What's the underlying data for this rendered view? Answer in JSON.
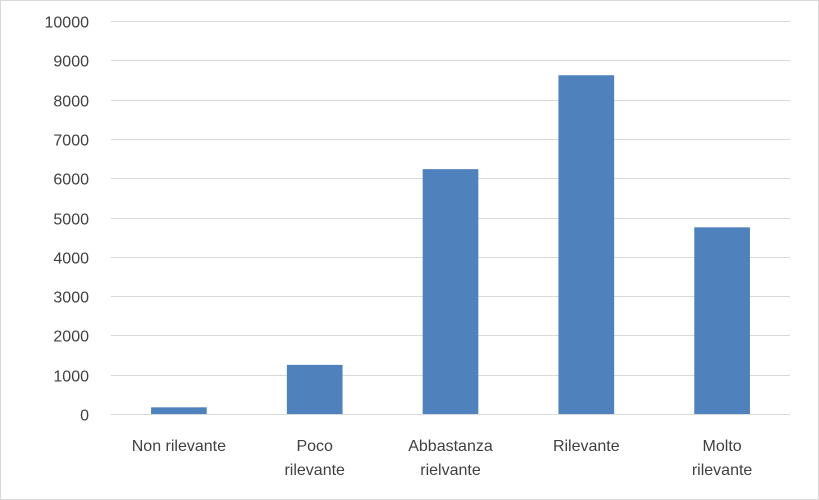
{
  "chart_data": {
    "type": "bar",
    "categories": [
      [
        "Non rilevante"
      ],
      [
        "Poco",
        "rilevante"
      ],
      [
        "Abbastanza",
        "rielvante"
      ],
      [
        "Rilevante"
      ],
      [
        "Molto",
        "rilevante"
      ]
    ],
    "values": [
      170,
      1250,
      6230,
      8620,
      4750
    ],
    "ylim": [
      0,
      10000
    ],
    "yticks": [
      0,
      1000,
      2000,
      3000,
      4000,
      5000,
      6000,
      7000,
      8000,
      9000,
      10000
    ],
    "grid": true,
    "legend": "none",
    "bar_color": "#4f81bd",
    "grid_color": "#d9d9d9",
    "text_color": "#404040"
  }
}
